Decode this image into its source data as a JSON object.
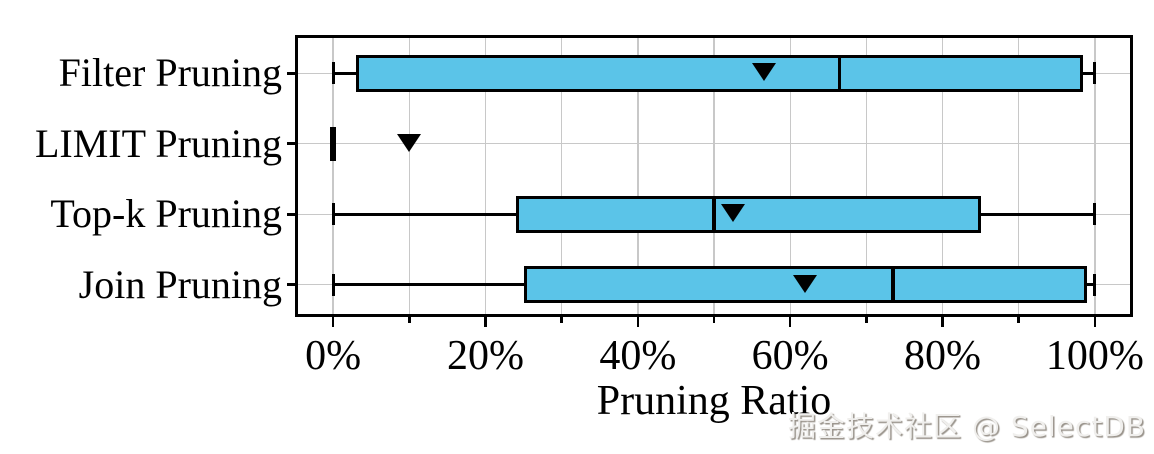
{
  "chart_data": {
    "type": "boxplot",
    "orientation": "horizontal",
    "title": "",
    "xlabel": "Pruning Ratio",
    "ylabel": "",
    "xlim": [
      -5,
      105
    ],
    "grid": true,
    "x_major_ticks": [
      0,
      20,
      40,
      60,
      80,
      100
    ],
    "x_tick_labels": [
      "0%",
      "20%",
      "40%",
      "60%",
      "80%",
      "100%"
    ],
    "x_minor_ticks": [
      10,
      30,
      50,
      70,
      90
    ],
    "x_gridlines_every": 10,
    "categories": [
      "Filter Pruning",
      "LIMIT Pruning",
      "Top-k Pruning",
      "Join Pruning"
    ],
    "boxes": [
      {
        "label": "Filter Pruning",
        "whisker_low": 0,
        "q1": 3,
        "median": 66.5,
        "q3": 98.5,
        "whisker_high": 100,
        "mean": 56.5,
        "collapsed": false
      },
      {
        "label": "LIMIT Pruning",
        "whisker_low": 0,
        "q1": 0,
        "median": 0,
        "q3": 0,
        "whisker_high": 0,
        "mean": 10,
        "collapsed": true
      },
      {
        "label": "Top-k Pruning",
        "whisker_low": 0,
        "q1": 24,
        "median": 50,
        "q3": 85,
        "whisker_high": 100,
        "mean": 52.5,
        "collapsed": false
      },
      {
        "label": "Join Pruning",
        "whisker_low": 0,
        "q1": 25,
        "median": 73.5,
        "q3": 99,
        "whisker_high": 100,
        "mean": 62,
        "collapsed": false
      }
    ],
    "mean_marker": "filled-down-triangle",
    "colors": {
      "box_fill": "#5BC4E8",
      "box_edge": "#000000",
      "grid": "#C8C8C8",
      "text": "#000000"
    }
  },
  "watermark": "掘金技术社区 @ SelectDB"
}
